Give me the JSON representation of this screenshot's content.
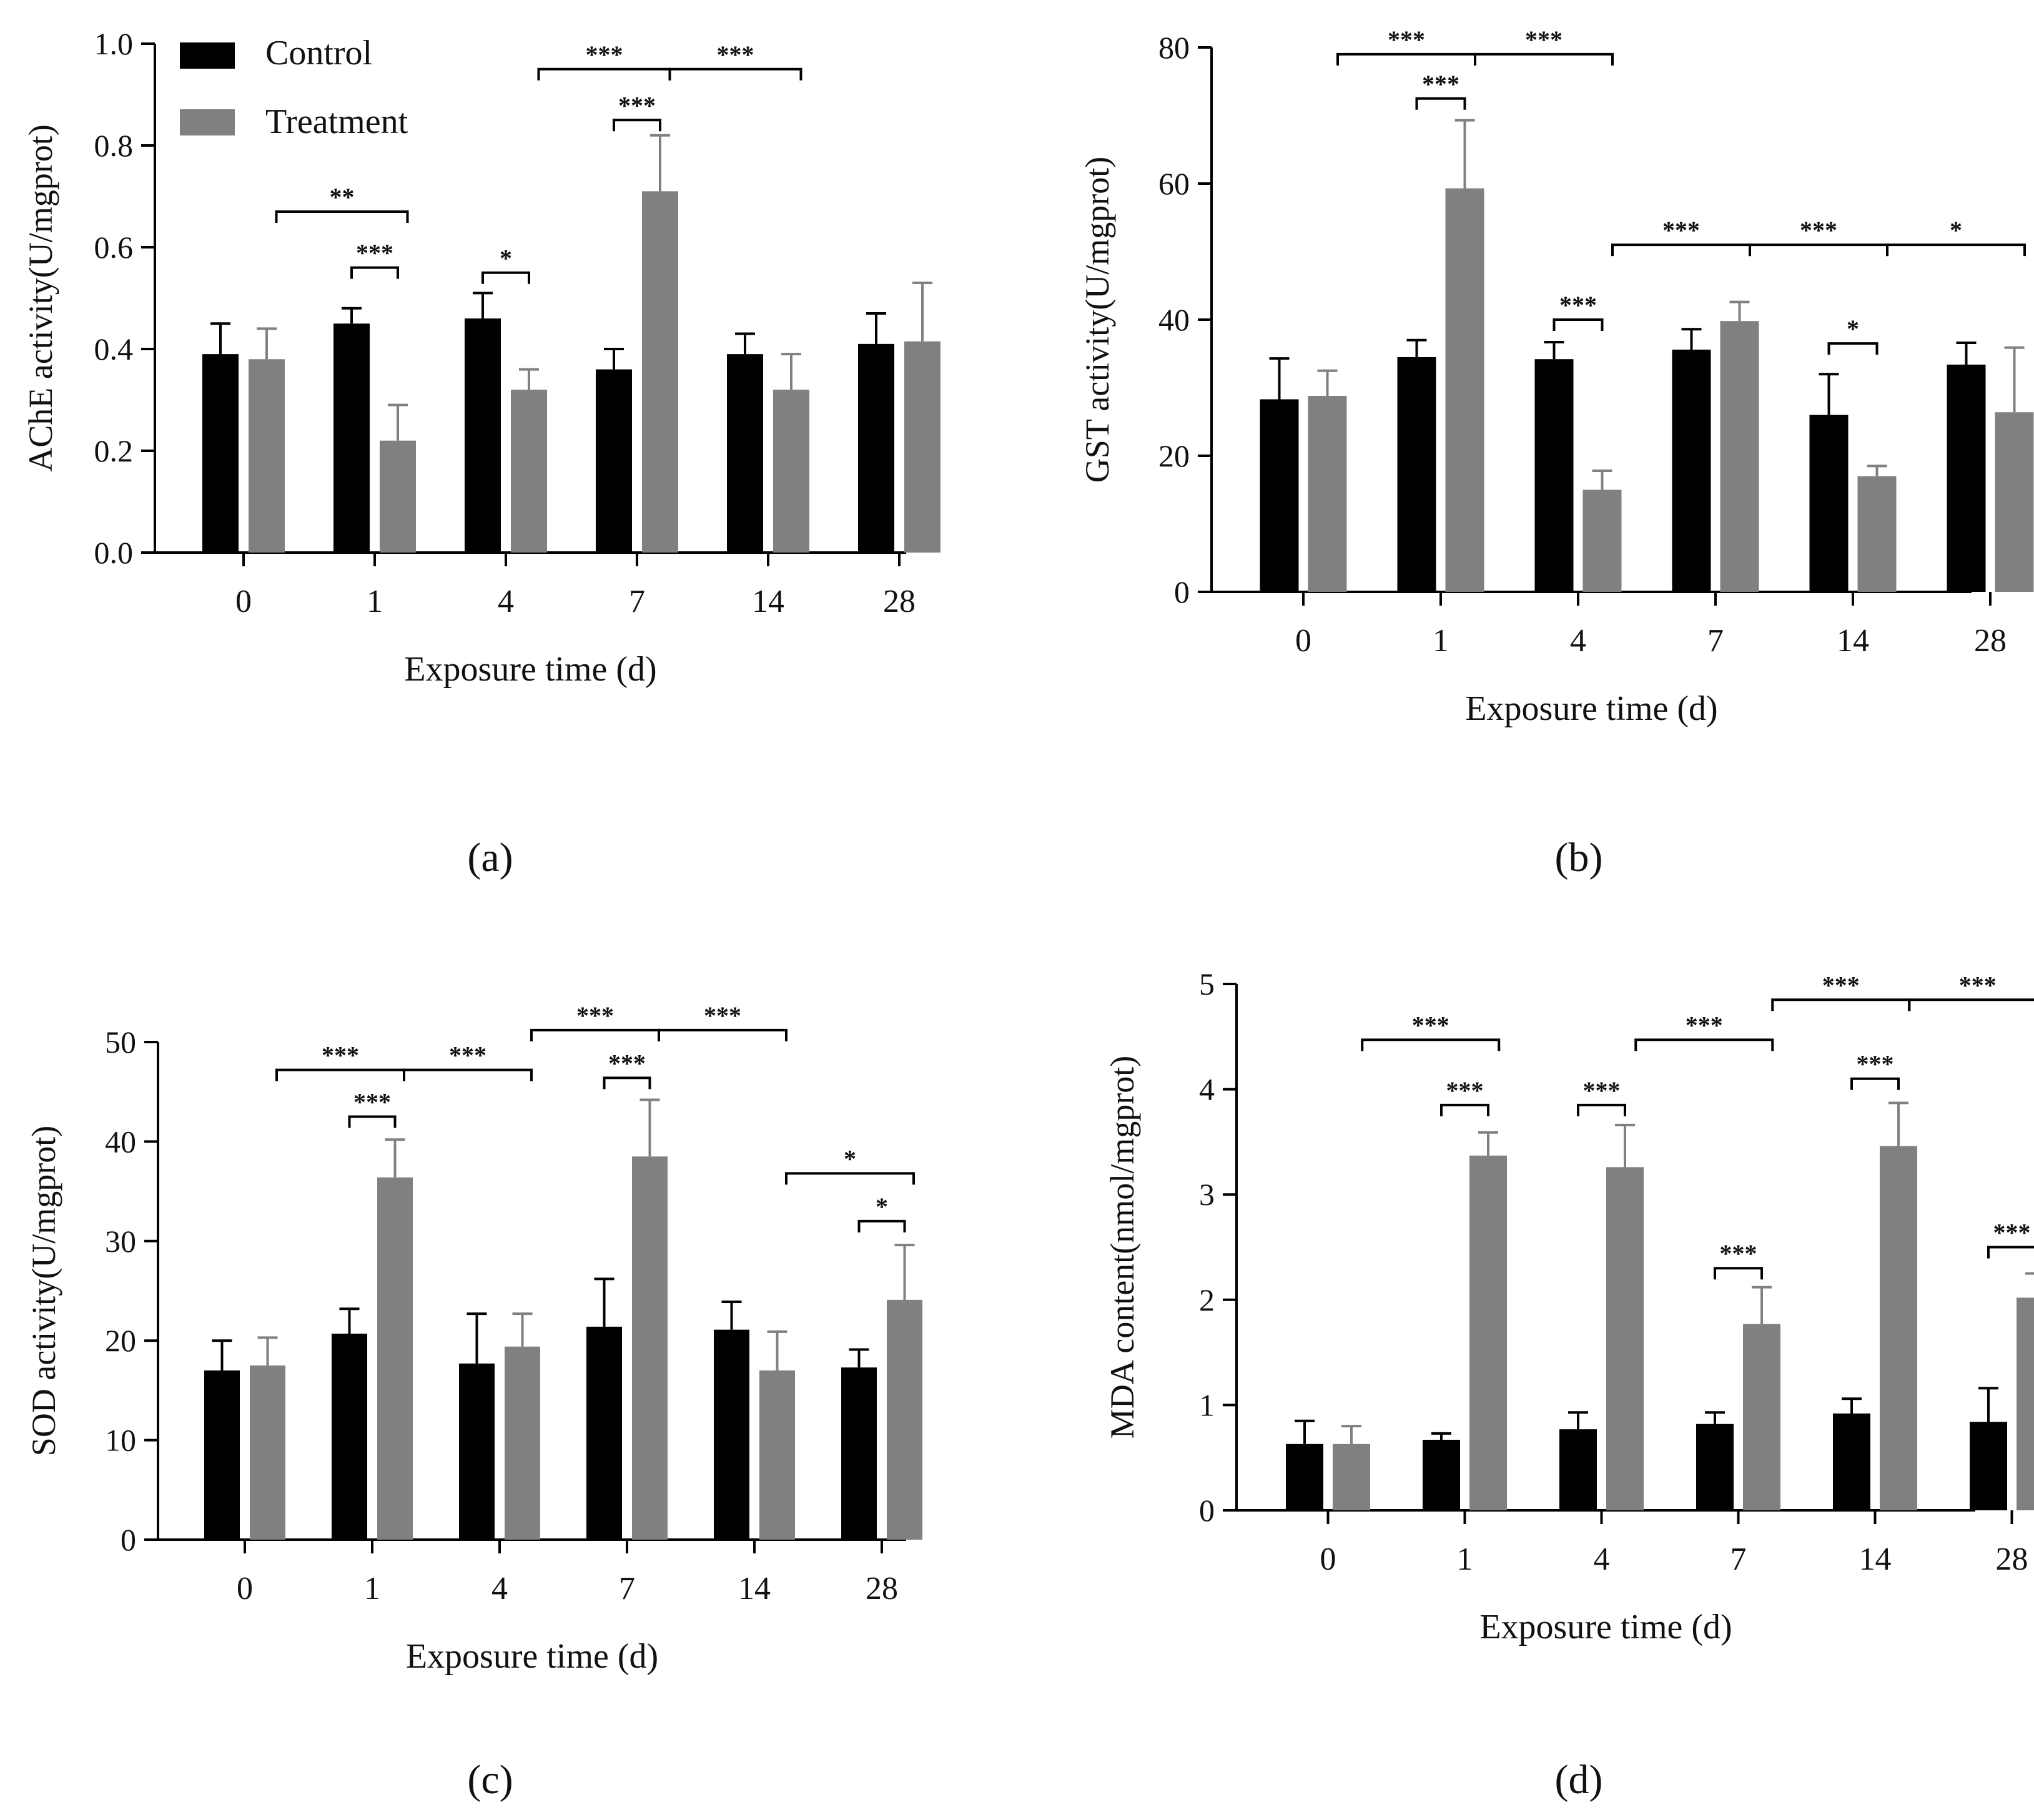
{
  "figure": {
    "panel_labels": [
      "(a)",
      "(b)",
      "(c)",
      "(d)"
    ],
    "legend": [
      {
        "name": "Control",
        "color": "#000000"
      },
      {
        "name": "Treatment",
        "color": "#808080"
      }
    ]
  },
  "chart_data": [
    {
      "type": "bar",
      "panel": "(a)",
      "ylabel": "AChE activity(U/mgprot)",
      "xlabel": "Exposure time (d)",
      "categories": [
        "0",
        "1",
        "4",
        "7",
        "14",
        "28"
      ],
      "ylim": [
        0,
        1.0
      ],
      "yticks": [
        0.0,
        0.2,
        0.4,
        0.6,
        0.8,
        1.0
      ],
      "ytick_labels": [
        "0.0",
        "0.2",
        "0.4",
        "0.6",
        "0.8",
        "1.0"
      ],
      "legend": true,
      "series": [
        {
          "name": "Control",
          "values": [
            0.39,
            0.45,
            0.46,
            0.36,
            0.39,
            0.41
          ],
          "errors": [
            0.06,
            0.03,
            0.05,
            0.04,
            0.04,
            0.06
          ]
        },
        {
          "name": "Treatment",
          "values": [
            0.38,
            0.22,
            0.32,
            0.71,
            0.32,
            0.415
          ],
          "errors": [
            0.06,
            0.07,
            0.04,
            0.11,
            0.07,
            0.115
          ]
        }
      ],
      "annotations": [
        {
          "type": "within",
          "cat": 1,
          "y": 0.56,
          "label": "***"
        },
        {
          "type": "between",
          "from": 0,
          "to": 1,
          "y": 0.67,
          "label": "**"
        },
        {
          "type": "within",
          "cat": 2,
          "y": 0.55,
          "label": "*"
        },
        {
          "type": "within",
          "cat": 3,
          "y": 0.85,
          "label": "***"
        },
        {
          "type": "between",
          "from": 2,
          "to": 3,
          "y": 0.95,
          "label": "***"
        },
        {
          "type": "between",
          "from": 3,
          "to": 4,
          "y": 0.95,
          "label": "***"
        }
      ]
    },
    {
      "type": "bar",
      "panel": "(b)",
      "ylabel": "GST activity(U/mgprot)",
      "xlabel": "Exposure time (d)",
      "categories": [
        "0",
        "1",
        "4",
        "7",
        "14",
        "28"
      ],
      "ylim": [
        0,
        80
      ],
      "yticks": [
        0,
        20,
        40,
        60,
        80
      ],
      "ytick_labels": [
        "0",
        "20",
        "40",
        "60",
        "80"
      ],
      "legend": false,
      "series": [
        {
          "name": "Control",
          "values": [
            28.3,
            34.5,
            34.2,
            35.6,
            26.0,
            33.4
          ],
          "errors": [
            6.0,
            2.5,
            2.5,
            3.0,
            6.0,
            3.2
          ]
        },
        {
          "name": "Treatment",
          "values": [
            28.8,
            59.3,
            15.0,
            39.8,
            17.0,
            26.4
          ],
          "errors": [
            3.7,
            10.0,
            2.8,
            2.8,
            1.5,
            9.5
          ]
        }
      ],
      "annotations": [
        {
          "type": "within",
          "cat": 1,
          "y": 72.5,
          "label": "***"
        },
        {
          "type": "between",
          "from": 0,
          "to": 1,
          "y": 79,
          "label": "***"
        },
        {
          "type": "between",
          "from": 1,
          "to": 2,
          "y": 79,
          "label": "***"
        },
        {
          "type": "within",
          "cat": 2,
          "y": 40,
          "label": "***"
        },
        {
          "type": "between",
          "from": 2,
          "to": 3,
          "y": 51,
          "label": "***"
        },
        {
          "type": "between",
          "from": 3,
          "to": 4,
          "y": 51,
          "label": "***"
        },
        {
          "type": "within",
          "cat": 4,
          "y": 36.5,
          "label": "*"
        },
        {
          "type": "between",
          "from": 4,
          "to": 5,
          "y": 51,
          "label": "*"
        }
      ]
    },
    {
      "type": "bar",
      "panel": "(c)",
      "ylabel": "SOD activity(U/mgprot)",
      "xlabel": "Exposure time (d)",
      "categories": [
        "0",
        "1",
        "4",
        "7",
        "14",
        "28"
      ],
      "ylim": [
        0,
        50
      ],
      "yticks": [
        0,
        10,
        20,
        30,
        40,
        50
      ],
      "ytick_labels": [
        "0",
        "10",
        "20",
        "30",
        "40",
        "50"
      ],
      "legend": false,
      "series": [
        {
          "name": "Control",
          "values": [
            17.0,
            20.7,
            17.7,
            21.4,
            21.1,
            17.3
          ],
          "errors": [
            3.0,
            2.5,
            5.0,
            4.8,
            2.8,
            1.8
          ]
        },
        {
          "name": "Treatment",
          "values": [
            17.5,
            36.4,
            19.4,
            38.5,
            17.0,
            24.1
          ],
          "errors": [
            2.8,
            3.8,
            3.3,
            5.7,
            3.9,
            5.5
          ]
        }
      ],
      "annotations": [
        {
          "type": "within",
          "cat": 1,
          "y": 42.5,
          "label": "***"
        },
        {
          "type": "between",
          "from": 0,
          "to": 1,
          "y": 47.2,
          "label": "***"
        },
        {
          "type": "between",
          "from": 1,
          "to": 2,
          "y": 47.2,
          "label": "***"
        },
        {
          "type": "within",
          "cat": 3,
          "y": 46.4,
          "label": "***"
        },
        {
          "type": "between",
          "from": 2,
          "to": 3,
          "y": 51.2,
          "label": "***"
        },
        {
          "type": "between",
          "from": 3,
          "to": 4,
          "y": 51.2,
          "label": "***"
        },
        {
          "type": "within",
          "cat": 5,
          "y": 32.0,
          "label": "*"
        },
        {
          "type": "between",
          "from": 4,
          "to": 5,
          "y": 36.8,
          "label": "*"
        }
      ]
    },
    {
      "type": "bar",
      "panel": "(d)",
      "ylabel": "MDA content(nmol/mgprot)",
      "xlabel": "Exposure time (d)",
      "categories": [
        "0",
        "1",
        "4",
        "7",
        "14",
        "28"
      ],
      "ylim": [
        0,
        5
      ],
      "yticks": [
        0,
        1,
        2,
        3,
        4,
        5
      ],
      "ytick_labels": [
        "0",
        "1",
        "2",
        "3",
        "4",
        "5"
      ],
      "legend": false,
      "series": [
        {
          "name": "Control",
          "values": [
            0.63,
            0.67,
            0.77,
            0.82,
            0.92,
            0.84
          ],
          "errors": [
            0.22,
            0.06,
            0.16,
            0.11,
            0.14,
            0.32
          ]
        },
        {
          "name": "Treatment",
          "values": [
            0.63,
            3.37,
            3.26,
            1.77,
            3.46,
            2.02
          ],
          "errors": [
            0.17,
            0.22,
            0.4,
            0.35,
            0.41,
            0.23
          ]
        }
      ],
      "annotations": [
        {
          "type": "within",
          "cat": 1,
          "y": 3.85,
          "label": "***"
        },
        {
          "type": "between",
          "from": 0,
          "to": 1,
          "y": 4.47,
          "label": "***"
        },
        {
          "type": "within",
          "cat": 2,
          "y": 3.85,
          "label": "***"
        },
        {
          "type": "between",
          "from": 2,
          "to": 3,
          "y": 4.47,
          "label": "***"
        },
        {
          "type": "within",
          "cat": 3,
          "y": 2.3,
          "label": "***"
        },
        {
          "type": "within",
          "cat": 4,
          "y": 4.1,
          "label": "***"
        },
        {
          "type": "between",
          "from": 3,
          "to": 4,
          "y": 4.85,
          "label": "***"
        },
        {
          "type": "between",
          "from": 4,
          "to": 5,
          "y": 4.85,
          "label": "***"
        },
        {
          "type": "within",
          "cat": 5,
          "y": 2.5,
          "label": "***"
        }
      ]
    }
  ]
}
